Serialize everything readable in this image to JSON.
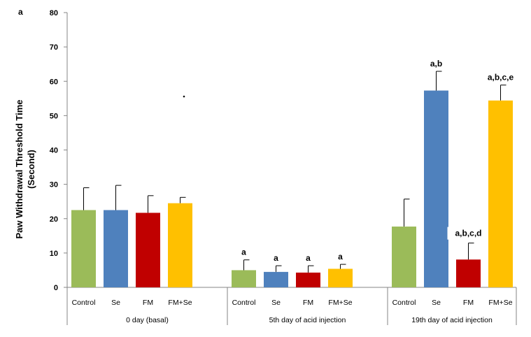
{
  "panel_label": "a",
  "chart_data": {
    "type": "bar",
    "ylabel_lines": [
      "Paw Withdrawal Threshold Time",
      "(Second)"
    ],
    "ylim": [
      0,
      80
    ],
    "yticks": [
      0,
      10,
      20,
      30,
      40,
      50,
      60,
      70,
      80
    ],
    "grid": false,
    "bar_labels": [
      "Control",
      "Se",
      "FM",
      "FM+Se"
    ],
    "colors": [
      "#9BBB59",
      "#4F81BD",
      "#C00000",
      "#FFC000"
    ],
    "groups": [
      {
        "name": "0 day (basal)",
        "values": [
          22.5,
          22.5,
          21.7,
          24.5
        ],
        "errors": [
          6.5,
          7.2,
          5.0,
          1.7
        ],
        "annotations": [
          "",
          "",
          "",
          ""
        ]
      },
      {
        "name": "5th day of acid injection",
        "values": [
          5.0,
          4.5,
          4.3,
          5.4
        ],
        "errors": [
          3.0,
          1.8,
          2.0,
          1.3
        ],
        "annotations": [
          "a",
          "a",
          "a",
          "a"
        ]
      },
      {
        "name": "19th day of acid injection",
        "values": [
          17.7,
          57.3,
          8.1,
          54.4
        ],
        "errors": [
          8.0,
          5.6,
          4.8,
          4.5
        ],
        "annotations": [
          "",
          "a,b",
          "a,b,c,d",
          "a,b,c,e"
        ]
      }
    ]
  }
}
